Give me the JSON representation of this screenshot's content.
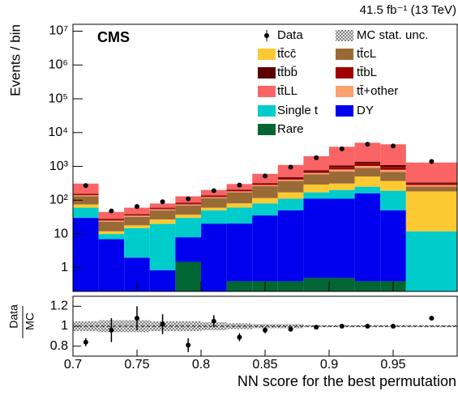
{
  "chart_data": [
    {
      "type": "stacked_histogram",
      "cms_label": "CMS",
      "lumi_label": "41.5 fb⁻¹ (13 TeV)",
      "ylabel": "Events / bin",
      "log_scale": true,
      "bins": [
        0.7,
        0.72,
        0.74,
        0.76,
        0.78,
        0.8,
        0.82,
        0.84,
        0.86,
        0.88,
        0.9,
        0.92,
        0.94,
        0.96,
        1.0
      ],
      "ylim": [
        0.2,
        16000000
      ],
      "yticks": [
        1,
        10,
        {
          "value": 100,
          "label": "10²"
        },
        {
          "value": 1000,
          "label": "10³"
        },
        {
          "value": 10000,
          "label": "10⁴"
        },
        {
          "value": 100000,
          "label": "10⁵"
        },
        {
          "value": 1000000,
          "label": "10⁶"
        },
        {
          "value": 10000000,
          "label": "10⁷"
        }
      ],
      "series": [
        {
          "name": "Rare",
          "color": "#006633",
          "values": [
            0,
            0,
            0,
            0,
            1.5,
            0,
            0.4,
            0.4,
            0.4,
            0.5,
            0.5,
            0.4,
            0.4,
            0
          ]
        },
        {
          "name": "DY",
          "color": "#0000ee",
          "values": [
            30,
            7,
            2,
            0.85,
            6.5,
            20,
            20,
            35,
            50,
            110,
            110,
            160,
            50,
            0
          ]
        },
        {
          "name": "Single t",
          "color": "#00cccc",
          "values": [
            30,
            3,
            13,
            19,
            22,
            30,
            40,
            45,
            60,
            60,
            90,
            90,
            140,
            12
          ]
        },
        {
          "name": "tt̄cc̄",
          "color": "#fcc932",
          "values": [
            15,
            2,
            3,
            7,
            7,
            10,
            20,
            35,
            60,
            120,
            110,
            250,
            180,
            170
          ]
        },
        {
          "name": "tt̄cL",
          "color": "#9a6a36",
          "values": [
            55,
            11,
            14,
            23,
            33,
            55,
            90,
            145,
            200,
            290,
            400,
            400,
            310,
            70
          ]
        },
        {
          "name": "tt̄+other",
          "color": "#fca070",
          "values": [
            10,
            2,
            3,
            4,
            5,
            8,
            12,
            20,
            35,
            60,
            100,
            130,
            110,
            30
          ]
        },
        {
          "name": "tt̄bL",
          "color": "#a00000",
          "values": [
            10,
            2,
            3,
            4,
            6,
            10,
            15,
            25,
            45,
            80,
            150,
            200,
            170,
            30
          ]
        },
        {
          "name": "tt̄bb̄",
          "color": "#5a0000",
          "values": [
            5,
            1,
            1,
            2,
            3,
            5,
            8,
            15,
            25,
            50,
            100,
            150,
            130,
            20
          ]
        },
        {
          "name": "tt̄LL",
          "color": "#fa6464",
          "values": [
            155,
            17,
            21,
            20,
            46,
            62,
            95,
            280,
            625,
            1230,
            2740,
            3620,
            3410,
            970
          ]
        }
      ],
      "data": {
        "name": "Data",
        "color": "#000000",
        "values": [
          270,
          48,
          65,
          90,
          110,
          190,
          280,
          520,
          950,
          1800,
          3300,
          4500,
          4000,
          1400
        ]
      },
      "uncertainty_name": "MC stat. unc."
    },
    {
      "type": "ratio",
      "xlabel": "NN score for the best permutation",
      "ylabel_numerator": "Data",
      "ylabel_denominator": "MC",
      "xlim": [
        0.7,
        1.0
      ],
      "xticks": [
        0.7,
        0.75,
        0.8,
        0.85,
        0.9,
        0.95
      ],
      "ylim": [
        0.7,
        1.3
      ],
      "yticks": [
        0.8,
        1,
        1.2
      ],
      "reference_line": 1,
      "values": [
        0.84,
        0.96,
        1.08,
        1.02,
        0.81,
        1.05,
        0.89,
        0.96,
        0.97,
        0.99,
        1.0,
        1.0,
        1.0,
        1.08
      ],
      "errors": [
        0.04,
        0.12,
        0.12,
        0.1,
        0.07,
        0.06,
        0.04,
        0.03,
        0.02,
        0.01,
        0.01,
        0.01,
        0.01,
        0.02
      ],
      "mc_unc": [
        0.05,
        0.06,
        0.06,
        0.05,
        0.05,
        0.04,
        0.03,
        0.02,
        0.02,
        0.01,
        0.01,
        0.01,
        0.01,
        0.01
      ]
    }
  ]
}
